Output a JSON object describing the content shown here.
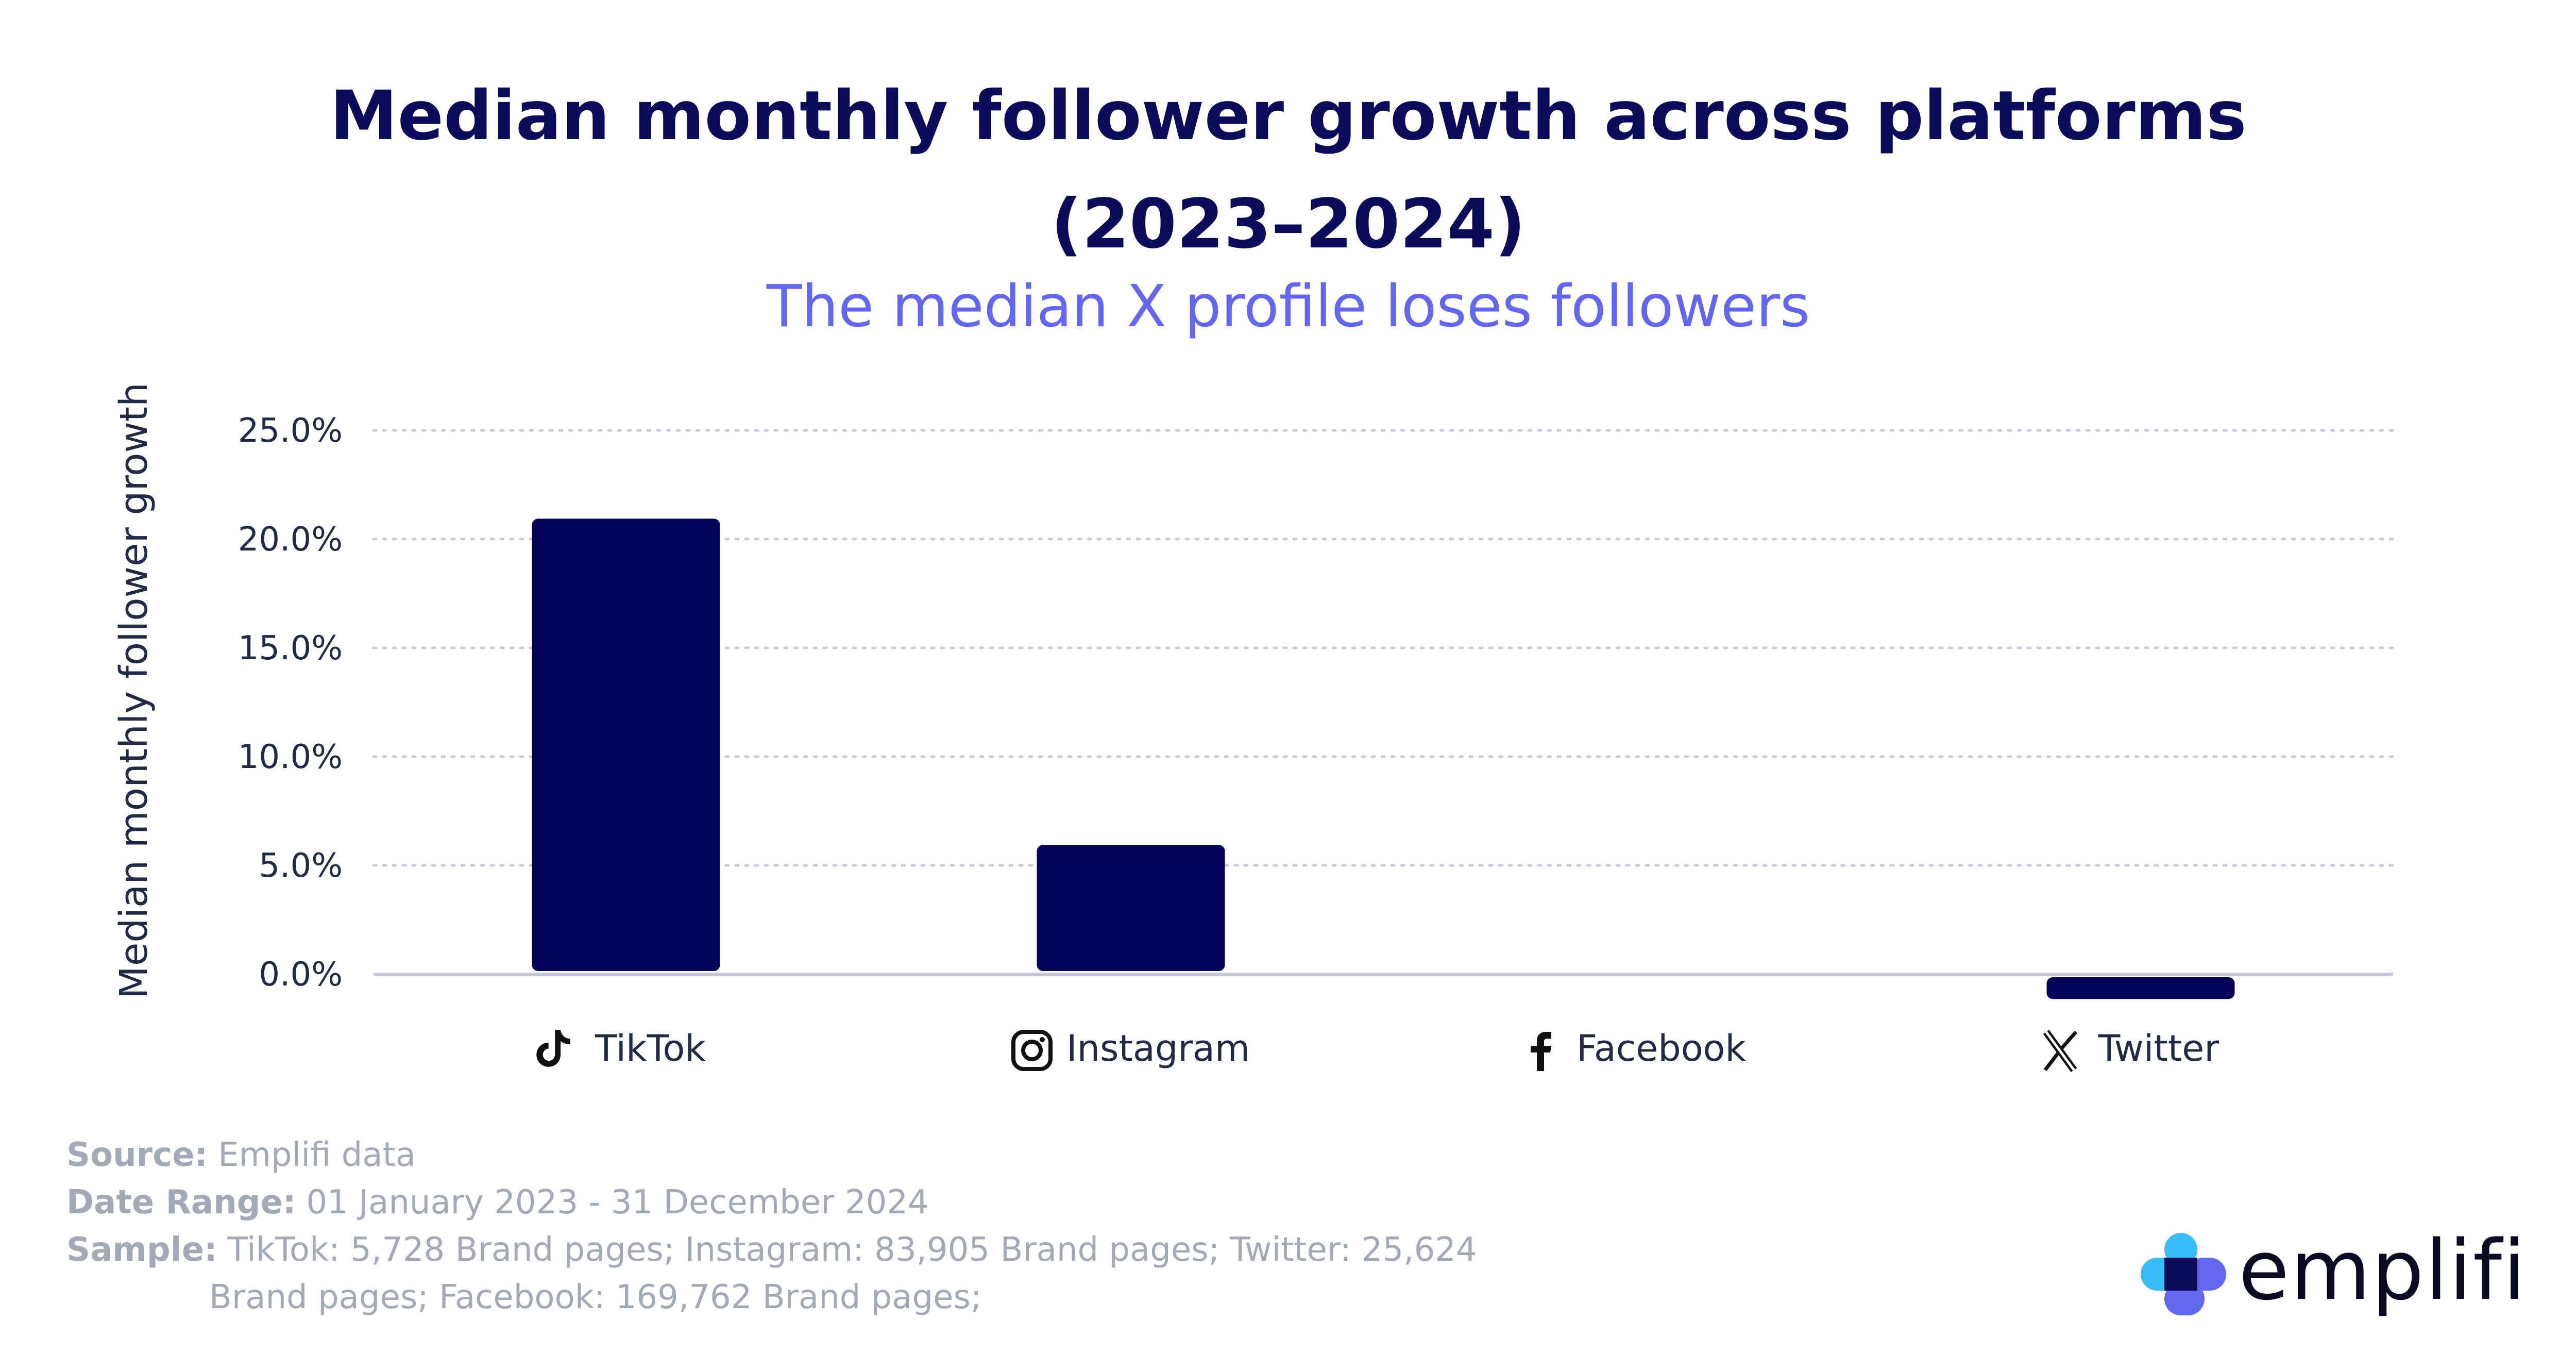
{
  "header": {
    "title_line1": "Median monthly follower growth across platforms",
    "title_line2": "(2023–2024)",
    "subtitle": "The median X profile loses followers"
  },
  "chart_data": {
    "type": "bar",
    "title": "Median monthly follower growth across platforms (2023–2024)",
    "subtitle": "The median X profile loses followers",
    "ylabel": "Median monthly follower growth",
    "xlabel": "",
    "categories": [
      "TikTok",
      "Instagram",
      "Facebook",
      "Twitter"
    ],
    "category_icons": [
      "tiktok-icon",
      "instagram-icon",
      "facebook-icon",
      "x-icon"
    ],
    "values": [
      20.8,
      5.8,
      0.0,
      -1.0
    ],
    "value_unit": "%",
    "ylim": [
      0,
      25
    ],
    "yticks": [
      0,
      5,
      10,
      15,
      20,
      25
    ],
    "ytick_labels": [
      "0.0%",
      "5.0%",
      "10.0%",
      "15.0%",
      "20.0%",
      "25.0%"
    ],
    "grid": true,
    "bar_color": "#05055e"
  },
  "footer": {
    "source_key": "Source:",
    "source_value": "Emplifi data",
    "date_key": "Date Range:",
    "date_value": "01 January 2023 - 31 December 2024",
    "sample_key": "Sample:",
    "sample_line1": "TikTok: 5,728 Brand pages; Instagram: 83,905 Brand pages; Twitter: 25,624",
    "sample_line2": "Brand pages; Facebook: 169,762 Brand pages;"
  },
  "brand": {
    "name": "emplifi",
    "colors": [
      "#38bdf8",
      "#6366f1",
      "#0b0b5c"
    ]
  }
}
